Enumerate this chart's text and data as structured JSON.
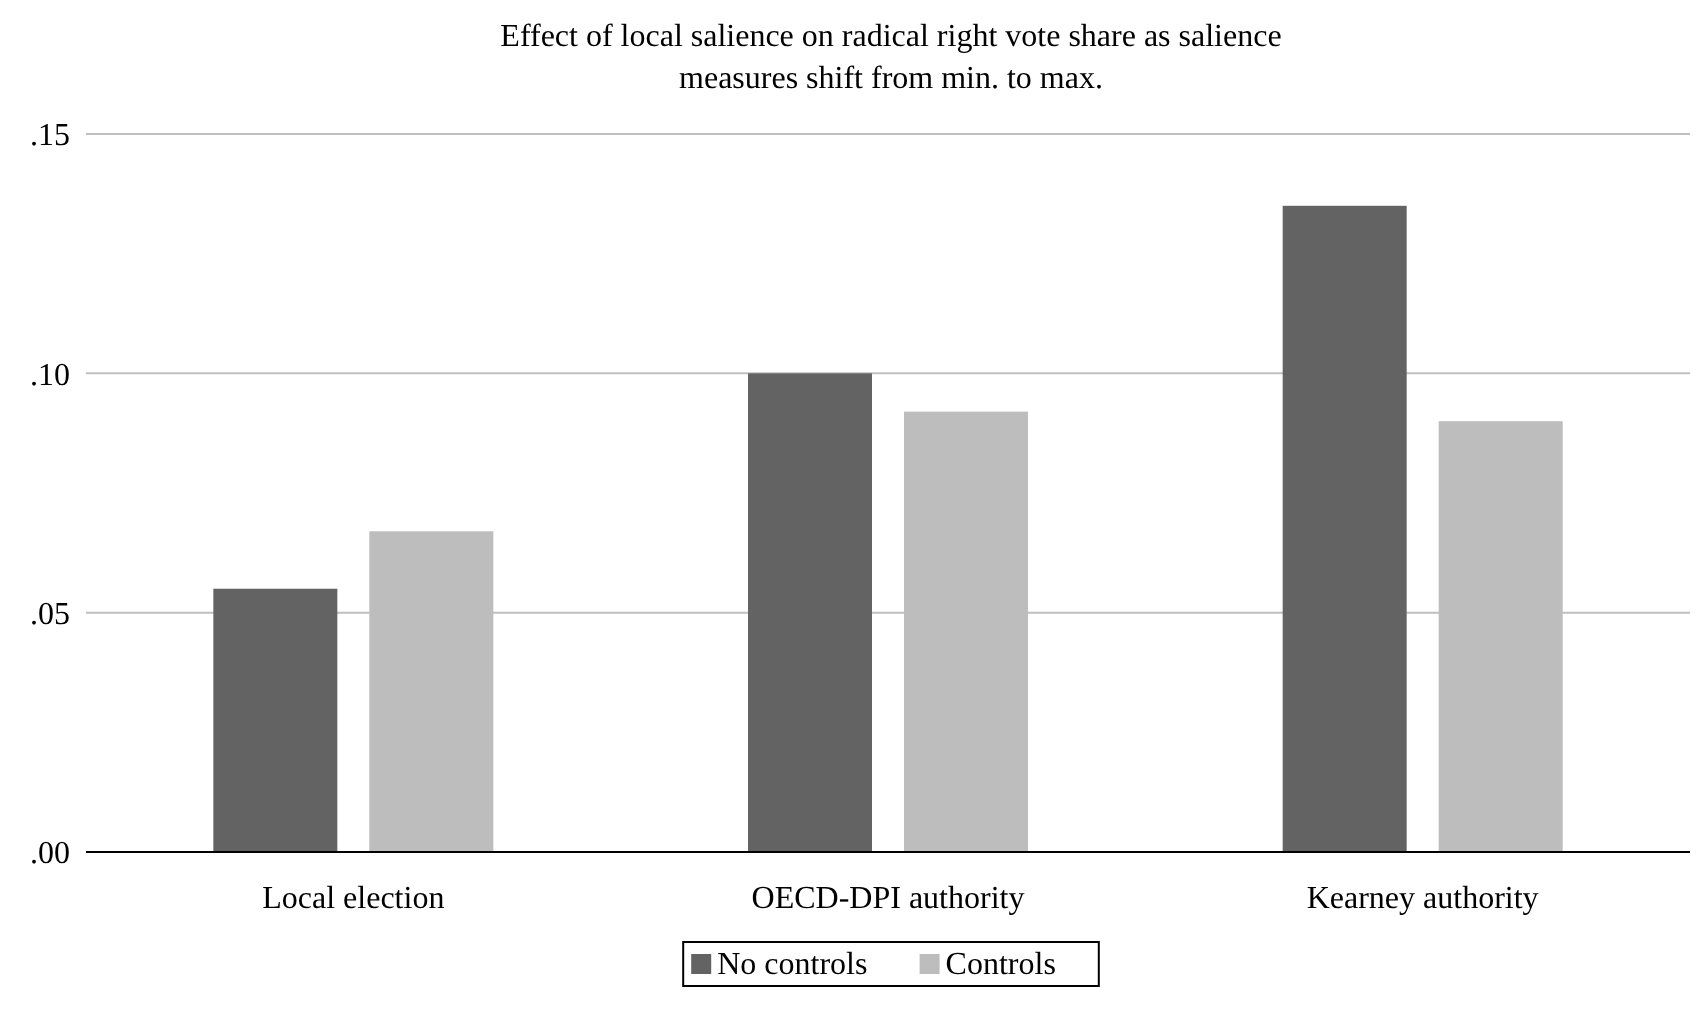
{
  "chart_data": {
    "type": "bar",
    "title": "Effect of local salience on radical right vote share as salience measures shift from min. to max.",
    "categories": [
      "Local election",
      "OECD-DPI authority",
      "Kearney authority"
    ],
    "series": [
      {
        "name": "No controls",
        "color": "#636363",
        "values": [
          0.055,
          0.1,
          0.135
        ]
      },
      {
        "name": "Controls",
        "color": "#bdbdbd",
        "values": [
          0.067,
          0.092,
          0.09
        ]
      }
    ],
    "ylim": [
      0,
      0.15
    ],
    "yticks": [
      {
        "value": 0,
        "label": ".00"
      },
      {
        "value": 0.05,
        "label": ".05"
      },
      {
        "value": 0.1,
        "label": ".10"
      },
      {
        "value": 0.15,
        "label": ".15"
      }
    ],
    "grid": "y",
    "legend": "bottom"
  }
}
